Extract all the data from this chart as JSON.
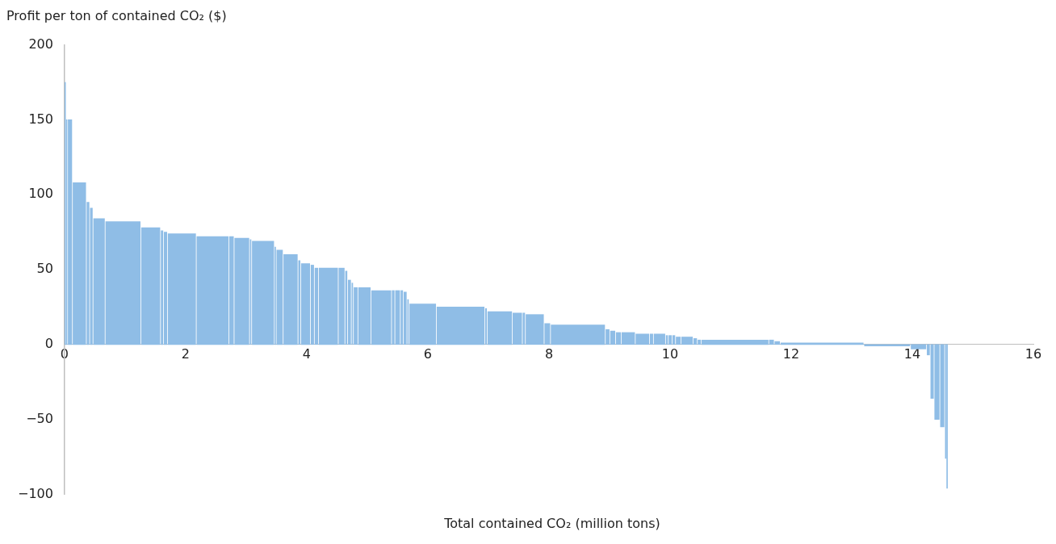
{
  "chart_data": {
    "type": "histogram",
    "xlabel": "Total contained CO₂ (million tons)",
    "ylabel": "Profit per ton of contained CO₂ ($)",
    "bins": [
      0,
      0.02,
      0.05,
      0.13,
      0.36,
      0.415,
      0.47,
      0.67,
      1.26,
      1.585,
      1.635,
      1.7,
      2.175,
      2.715,
      2.8,
      3.055,
      3.09,
      3.465,
      3.495,
      3.61,
      3.855,
      3.9,
      4.06,
      4.125,
      4.195,
      4.52,
      4.63,
      4.675,
      4.735,
      4.77,
      4.845,
      5.06,
      5.4,
      5.455,
      5.545,
      5.595,
      5.655,
      5.69,
      6.14,
      6.94,
      6.98,
      7.395,
      7.56,
      7.61,
      7.92,
      8.025,
      8.93,
      9.005,
      9.1,
      9.195,
      9.425,
      9.66,
      9.725,
      9.925,
      9.97,
      10.035,
      10.09,
      10.18,
      10.38,
      10.45,
      10.515,
      11.63,
      11.72,
      11.82,
      13.2,
      13.97,
      14.235,
      14.295,
      14.36,
      14.455,
      14.535,
      14.57,
      14.58
    ],
    "values": [
      175,
      150,
      150,
      108,
      95,
      91,
      84,
      82,
      78,
      76,
      75,
      74,
      72,
      72,
      71,
      70,
      69,
      65,
      63,
      60,
      56,
      54,
      53,
      51,
      51,
      51,
      49,
      43,
      41,
      38,
      38,
      36,
      36,
      36,
      36,
      35,
      30,
      27,
      25,
      24,
      22,
      21,
      21,
      20,
      14,
      13,
      10,
      9,
      8,
      8,
      7,
      7,
      7,
      6,
      6,
      6,
      5,
      5,
      4,
      3,
      3,
      3,
      2,
      1,
      -1,
      -3,
      -7,
      -36,
      -50,
      -55,
      -76,
      -96
    ],
    "color": "#8fbde6",
    "xlim": [
      0,
      16
    ],
    "xticks": [
      0,
      2,
      4,
      6,
      8,
      10,
      12,
      14,
      16
    ],
    "ylim": [
      -100,
      200
    ],
    "yticks": [
      200,
      150,
      100,
      50,
      0,
      {
        "value": -50,
        "label": "−50"
      },
      {
        "value": -100,
        "label": "−100"
      }
    ],
    "grid": false
  }
}
